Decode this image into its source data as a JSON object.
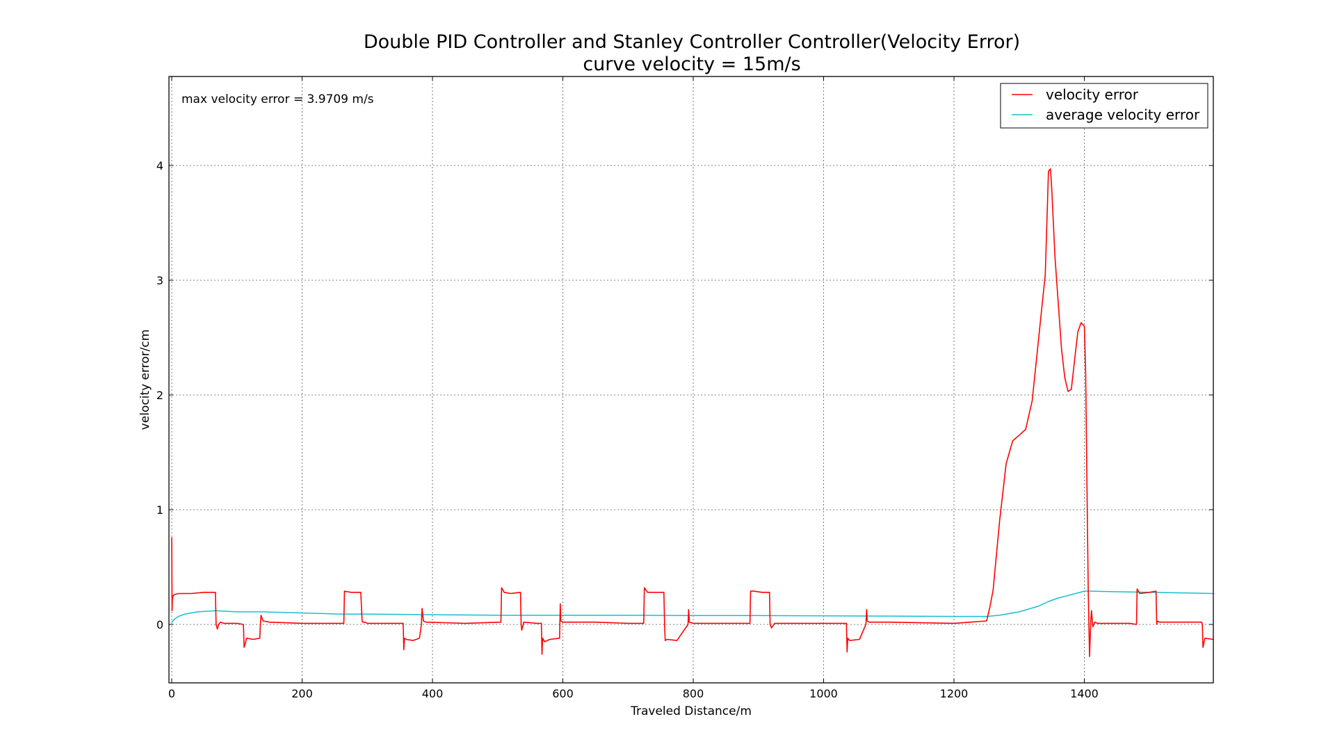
{
  "chart_data": {
    "type": "line",
    "title": "Double PID Controller and Stanley Controller Controller(Velocity Error)",
    "subtitle": "curve velocity = 15m/s",
    "xlabel": "Traveled Distance/m",
    "ylabel": "velocity error/cm",
    "xlim": [
      -5,
      1600
    ],
    "ylim": [
      -0.5,
      4.75
    ],
    "xticks": [
      0,
      200,
      400,
      600,
      800,
      1000,
      1200,
      1400
    ],
    "yticks": [
      0,
      1,
      2,
      3,
      4
    ],
    "grid": true,
    "legend_position": "top-right",
    "annotation": "max velocity error = 3.9709 m/s",
    "series": [
      {
        "name": "velocity error",
        "color": "#ff0000",
        "x": [
          0,
          0.5,
          1,
          2,
          4,
          10,
          30,
          50,
          67,
          68,
          70,
          72,
          75,
          80,
          100,
          110,
          111,
          115,
          125,
          135,
          136,
          137,
          140,
          150,
          200,
          250,
          264,
          265,
          275,
          290,
          292,
          293,
          296,
          300,
          340,
          355,
          356,
          357,
          360,
          370,
          380,
          383,
          384,
          386,
          390,
          450,
          505,
          506,
          510,
          520,
          535,
          536,
          537,
          540,
          560,
          567,
          568,
          569,
          572,
          580,
          595,
          596,
          597,
          600,
          650,
          700,
          724,
          725,
          730,
          745,
          755,
          756,
          757,
          760,
          775,
          792,
          793,
          794,
          800,
          850,
          887,
          888,
          893,
          905,
          917,
          918,
          920,
          925,
          950,
          1000,
          1035,
          1036,
          1037,
          1040,
          1055,
          1065,
          1066,
          1067,
          1070,
          1100,
          1200,
          1250,
          1255,
          1260,
          1270,
          1280,
          1290,
          1300,
          1310,
          1320,
          1330,
          1340,
          1345,
          1348,
          1350,
          1355,
          1360,
          1365,
          1370,
          1375,
          1380,
          1385,
          1390,
          1395,
          1400,
          1402,
          1404,
          1406,
          1408,
          1410,
          1411,
          1413,
          1416,
          1420,
          1440,
          1470,
          1480,
          1481,
          1485,
          1500,
          1510,
          1511,
          1512,
          1515,
          1530,
          1550,
          1580,
          1581,
          1582,
          1585,
          1600
        ],
        "y": [
          0.76,
          0.12,
          0.22,
          0.25,
          0.26,
          0.27,
          0.27,
          0.28,
          0.28,
          0.0,
          -0.04,
          0.0,
          0.02,
          0.01,
          0.01,
          0.0,
          -0.2,
          -0.12,
          -0.13,
          -0.12,
          0.0,
          0.08,
          0.03,
          0.02,
          0.01,
          0.01,
          0.01,
          0.29,
          0.28,
          0.28,
          0.03,
          0.02,
          0.02,
          0.01,
          0.01,
          0.01,
          -0.22,
          -0.12,
          -0.13,
          -0.14,
          -0.12,
          0.0,
          0.14,
          0.03,
          0.02,
          0.01,
          0.02,
          0.32,
          0.28,
          0.27,
          0.28,
          0.0,
          -0.05,
          0.02,
          0.01,
          0.01,
          -0.26,
          -0.12,
          -0.15,
          -0.13,
          -0.12,
          0.18,
          0.03,
          0.02,
          0.02,
          0.01,
          0.01,
          0.32,
          0.28,
          0.28,
          0.28,
          0.0,
          -0.14,
          -0.13,
          -0.14,
          0.0,
          0.13,
          0.02,
          0.01,
          0.01,
          0.01,
          0.29,
          0.29,
          0.28,
          0.28,
          0.0,
          -0.03,
          0.01,
          0.01,
          0.01,
          0.01,
          -0.24,
          -0.12,
          -0.14,
          -0.13,
          0.0,
          0.13,
          0.03,
          0.02,
          0.02,
          0.01,
          0.03,
          0.15,
          0.3,
          0.9,
          1.4,
          1.6,
          1.65,
          1.7,
          1.95,
          2.5,
          3.05,
          3.95,
          3.97,
          3.8,
          3.2,
          2.8,
          2.4,
          2.15,
          2.03,
          2.05,
          2.3,
          2.55,
          2.63,
          2.6,
          2.2,
          1.2,
          0.3,
          -0.28,
          0.05,
          0.12,
          -0.02,
          0.02,
          0.01,
          0.01,
          0.01,
          0.0,
          0.31,
          0.27,
          0.28,
          0.29,
          0.0,
          0.03,
          0.02,
          0.02,
          0.02,
          0.02,
          0.0,
          -0.2,
          -0.12,
          -0.13
        ],
        "ylim_note": ""
      },
      {
        "name": "average velocity error",
        "color": "#17becf",
        "x": [
          0,
          5,
          10,
          20,
          40,
          68,
          100,
          140,
          200,
          260,
          300,
          400,
          500,
          600,
          700,
          800,
          900,
          1000,
          1100,
          1200,
          1250,
          1270,
          1300,
          1330,
          1345,
          1360,
          1380,
          1400,
          1410,
          1450,
          1500,
          1550,
          1600
        ],
        "y": [
          0.02,
          0.05,
          0.07,
          0.09,
          0.11,
          0.12,
          0.11,
          0.11,
          0.1,
          0.09,
          0.09,
          0.085,
          0.08,
          0.08,
          0.08,
          0.077,
          0.077,
          0.075,
          0.073,
          0.07,
          0.07,
          0.08,
          0.11,
          0.16,
          0.2,
          0.23,
          0.26,
          0.29,
          0.29,
          0.285,
          0.28,
          0.275,
          0.27
        ]
      }
    ]
  }
}
